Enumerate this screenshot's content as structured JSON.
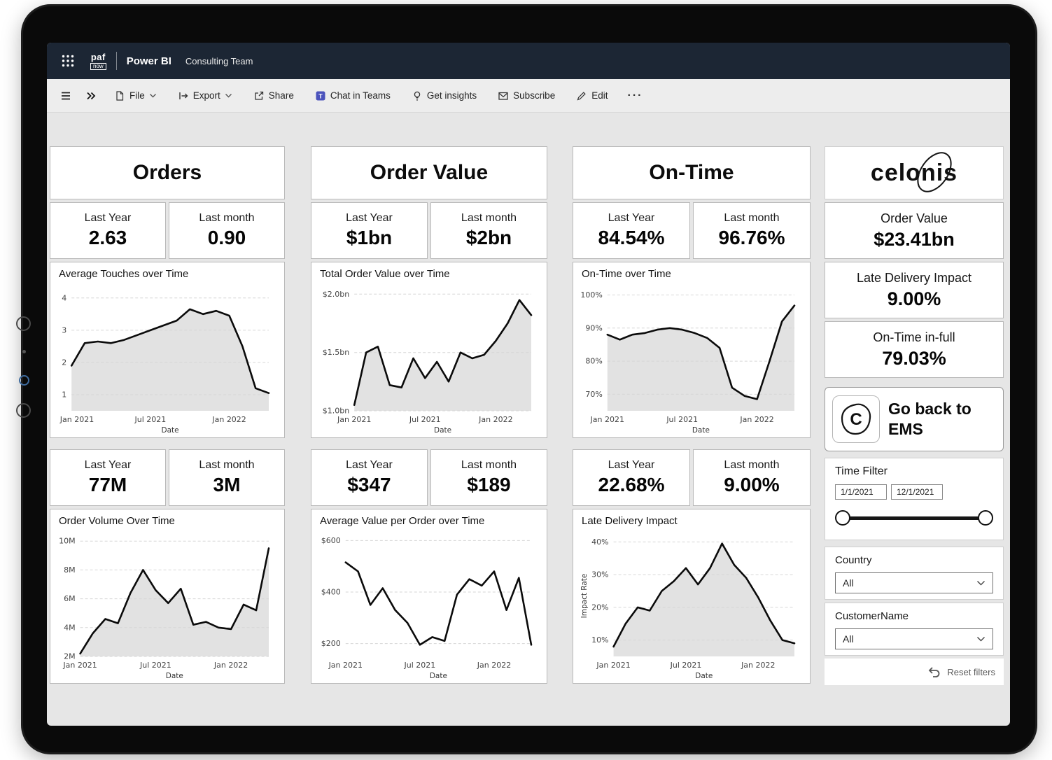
{
  "topbar": {
    "logo_line1": "paf",
    "logo_line2": "now",
    "app_name": "Power BI",
    "workspace": "Consulting Team"
  },
  "toolbar": {
    "file": "File",
    "export": "Export",
    "share": "Share",
    "chat_in_teams": "Chat in Teams",
    "get_insights": "Get insights",
    "subscribe": "Subscribe",
    "edit": "Edit",
    "more": "···"
  },
  "columns": [
    {
      "title": "Orders",
      "top_kpis": [
        {
          "label": "Last Year",
          "value": "2.63"
        },
        {
          "label": "Last month",
          "value": "0.90"
        }
      ],
      "bottom_kpis": [
        {
          "label": "Last Year",
          "value": "77M"
        },
        {
          "label": "Last month",
          "value": "3M"
        }
      ]
    },
    {
      "title": "Order Value",
      "top_kpis": [
        {
          "label": "Last Year",
          "value": "$1bn"
        },
        {
          "label": "Last month",
          "value": "$2bn"
        }
      ],
      "bottom_kpis": [
        {
          "label": "Last Year",
          "value": "$347"
        },
        {
          "label": "Last month",
          "value": "$189"
        }
      ]
    },
    {
      "title": "On-Time",
      "top_kpis": [
        {
          "label": "Last Year",
          "value": "84.54%"
        },
        {
          "label": "Last month",
          "value": "96.76%"
        }
      ],
      "bottom_kpis": [
        {
          "label": "Last Year",
          "value": "22.68%"
        },
        {
          "label": "Last month",
          "value": "9.00%"
        }
      ]
    }
  ],
  "side_panel": {
    "logo_text": "celonis",
    "stats": [
      {
        "label": "Order Value",
        "value": "$23.41bn"
      },
      {
        "label": "Late Delivery Impact",
        "value": "9.00%"
      },
      {
        "label": "On-Time in-full",
        "value": "79.03%"
      }
    ],
    "ems_button": {
      "line1": "Go back to",
      "line2": "EMS",
      "icon_letter": "C"
    },
    "time_filter": {
      "label": "Time Filter",
      "start_date": "1/1/2021",
      "end_date": "12/1/2021"
    },
    "country_filter": {
      "label": "Country",
      "value": "All"
    },
    "customer_filter": {
      "label": "CustomerName",
      "value": "All"
    },
    "reset_label": "Reset filters"
  },
  "colors": {
    "topbar_bg": "#1c2634",
    "line": "#0b0b0b",
    "area_fill": "#e2e2e2",
    "teams_icon": "#4B53BC"
  },
  "chart_data": [
    {
      "type": "area",
      "title": "Average Touches over Time",
      "xlabel": "Date",
      "ylabel": "",
      "x": [
        "Jan 2021",
        "Feb 2021",
        "Mar 2021",
        "Apr 2021",
        "May 2021",
        "Jun 2021",
        "Jul 2021",
        "Aug 2021",
        "Sep 2021",
        "Oct 2021",
        "Nov 2021",
        "Dec 2021",
        "Jan 2022",
        "Feb 2022",
        "Mar 2022",
        "Apr 2022"
      ],
      "values": [
        1.9,
        2.6,
        2.65,
        2.6,
        2.7,
        2.85,
        3.0,
        3.15,
        3.3,
        3.65,
        3.5,
        3.6,
        3.45,
        2.5,
        1.2,
        1.05
      ],
      "ylim": [
        0.5,
        4.3
      ],
      "yticks": [
        1,
        2,
        3,
        4
      ],
      "ytick_labels": [
        "1",
        "2",
        "3",
        "4"
      ],
      "xticks": [
        0,
        6,
        12
      ],
      "xtick_labels": [
        "Jan 2021",
        "Jul 2021",
        "Jan 2022"
      ],
      "grid": true,
      "fill": true,
      "legend": "none"
    },
    {
      "type": "area",
      "title": "Total Order Value over Time",
      "xlabel": "Date",
      "ylabel": "",
      "x": [
        "Jan 2021",
        "Feb 2021",
        "Mar 2021",
        "Apr 2021",
        "May 2021",
        "Jun 2021",
        "Jul 2021",
        "Aug 2021",
        "Sep 2021",
        "Oct 2021",
        "Nov 2021",
        "Dec 2021",
        "Jan 2022",
        "Feb 2022",
        "Mar 2022",
        "Apr 2022"
      ],
      "values": [
        1.05,
        1.5,
        1.55,
        1.22,
        1.2,
        1.45,
        1.28,
        1.42,
        1.25,
        1.5,
        1.45,
        1.48,
        1.6,
        1.75,
        1.95,
        1.82
      ],
      "ylim": [
        1.0,
        2.05
      ],
      "yticks": [
        1.0,
        1.5,
        2.0
      ],
      "ytick_labels": [
        "$1.0bn",
        "$1.5bn",
        "$2.0bn"
      ],
      "xticks": [
        0,
        6,
        12
      ],
      "xtick_labels": [
        "Jan 2021",
        "Jul 2021",
        "Jan 2022"
      ],
      "grid": true,
      "fill": true,
      "legend": "none"
    },
    {
      "type": "area",
      "title": "On-Time over Time",
      "xlabel": "Date",
      "ylabel": "",
      "x": [
        "Jan 2021",
        "Feb 2021",
        "Mar 2021",
        "Apr 2021",
        "May 2021",
        "Jun 2021",
        "Jul 2021",
        "Aug 2021",
        "Sep 2021",
        "Oct 2021",
        "Nov 2021",
        "Dec 2021",
        "Jan 2022",
        "Feb 2022",
        "Mar 2022",
        "Apr 2022"
      ],
      "values": [
        88,
        86.5,
        88,
        88.5,
        89.5,
        90,
        89.5,
        88.5,
        87,
        84,
        72,
        69.5,
        68.5,
        80,
        92,
        96.8
      ],
      "ylim": [
        65,
        102
      ],
      "yticks": [
        70,
        80,
        90,
        100
      ],
      "ytick_labels": [
        "70%",
        "80%",
        "90%",
        "100%"
      ],
      "xticks": [
        0,
        6,
        12
      ],
      "xtick_labels": [
        "Jan 2021",
        "Jul 2021",
        "Jan 2022"
      ],
      "grid": true,
      "fill": true,
      "legend": "none"
    },
    {
      "type": "area",
      "title": "Order Volume Over Time",
      "xlabel": "Date",
      "ylabel": "",
      "x": [
        "Jan 2021",
        "Feb 2021",
        "Mar 2021",
        "Apr 2021",
        "May 2021",
        "Jun 2021",
        "Jul 2021",
        "Aug 2021",
        "Sep 2021",
        "Oct 2021",
        "Nov 2021",
        "Dec 2021",
        "Jan 2022",
        "Feb 2022",
        "Mar 2022",
        "Apr 2022"
      ],
      "values": [
        2.2,
        3.6,
        4.6,
        4.3,
        6.4,
        8.0,
        6.6,
        5.7,
        6.7,
        4.2,
        4.4,
        4.0,
        3.9,
        5.6,
        5.2,
        9.5
      ],
      "ylim": [
        2,
        10.4
      ],
      "yticks": [
        2,
        4,
        6,
        8,
        10
      ],
      "ytick_labels": [
        "2M",
        "4M",
        "6M",
        "8M",
        "10M"
      ],
      "xticks": [
        0,
        6,
        12
      ],
      "xtick_labels": [
        "Jan 2021",
        "Jul 2021",
        "Jan 2022"
      ],
      "grid": true,
      "fill": true,
      "legend": "none"
    },
    {
      "type": "line",
      "title": "Average Value per Order over Time",
      "xlabel": "Date",
      "ylabel": "",
      "x": [
        "Jan 2021",
        "Feb 2021",
        "Mar 2021",
        "Apr 2021",
        "May 2021",
        "Jun 2021",
        "Jul 2021",
        "Aug 2021",
        "Sep 2021",
        "Oct 2021",
        "Nov 2021",
        "Dec 2021",
        "Jan 2022",
        "Feb 2022",
        "Mar 2022",
        "Apr 2022"
      ],
      "values": [
        515,
        480,
        350,
        415,
        330,
        280,
        195,
        225,
        210,
        390,
        450,
        425,
        480,
        330,
        455,
        195
      ],
      "ylim": [
        150,
        620
      ],
      "yticks": [
        200,
        400,
        600
      ],
      "ytick_labels": [
        "$200",
        "$400",
        "$600"
      ],
      "xticks": [
        0,
        6,
        12
      ],
      "xtick_labels": [
        "Jan 2021",
        "Jul 2021",
        "Jan 2022"
      ],
      "grid": true,
      "fill": false,
      "legend": "none"
    },
    {
      "type": "area",
      "title": "Late Delivery Impact",
      "xlabel": "Date",
      "ylabel": "Impact Rate",
      "x": [
        "Jan 2021",
        "Feb 2021",
        "Mar 2021",
        "Apr 2021",
        "May 2021",
        "Jun 2021",
        "Jul 2021",
        "Aug 2021",
        "Sep 2021",
        "Oct 2021",
        "Nov 2021",
        "Dec 2021",
        "Jan 2022",
        "Feb 2022",
        "Mar 2022",
        "Apr 2022"
      ],
      "values": [
        8,
        15,
        20,
        19,
        25,
        28,
        32,
        27,
        32,
        39.5,
        33,
        29,
        23,
        16,
        10,
        9
      ],
      "ylim": [
        5,
        42
      ],
      "yticks": [
        10,
        20,
        30,
        40
      ],
      "ytick_labels": [
        "10%",
        "20%",
        "30%",
        "40%"
      ],
      "xticks": [
        0,
        6,
        12
      ],
      "xtick_labels": [
        "Jan 2021",
        "Jul 2021",
        "Jan 2022"
      ],
      "grid": true,
      "fill": true,
      "legend": "none"
    }
  ]
}
